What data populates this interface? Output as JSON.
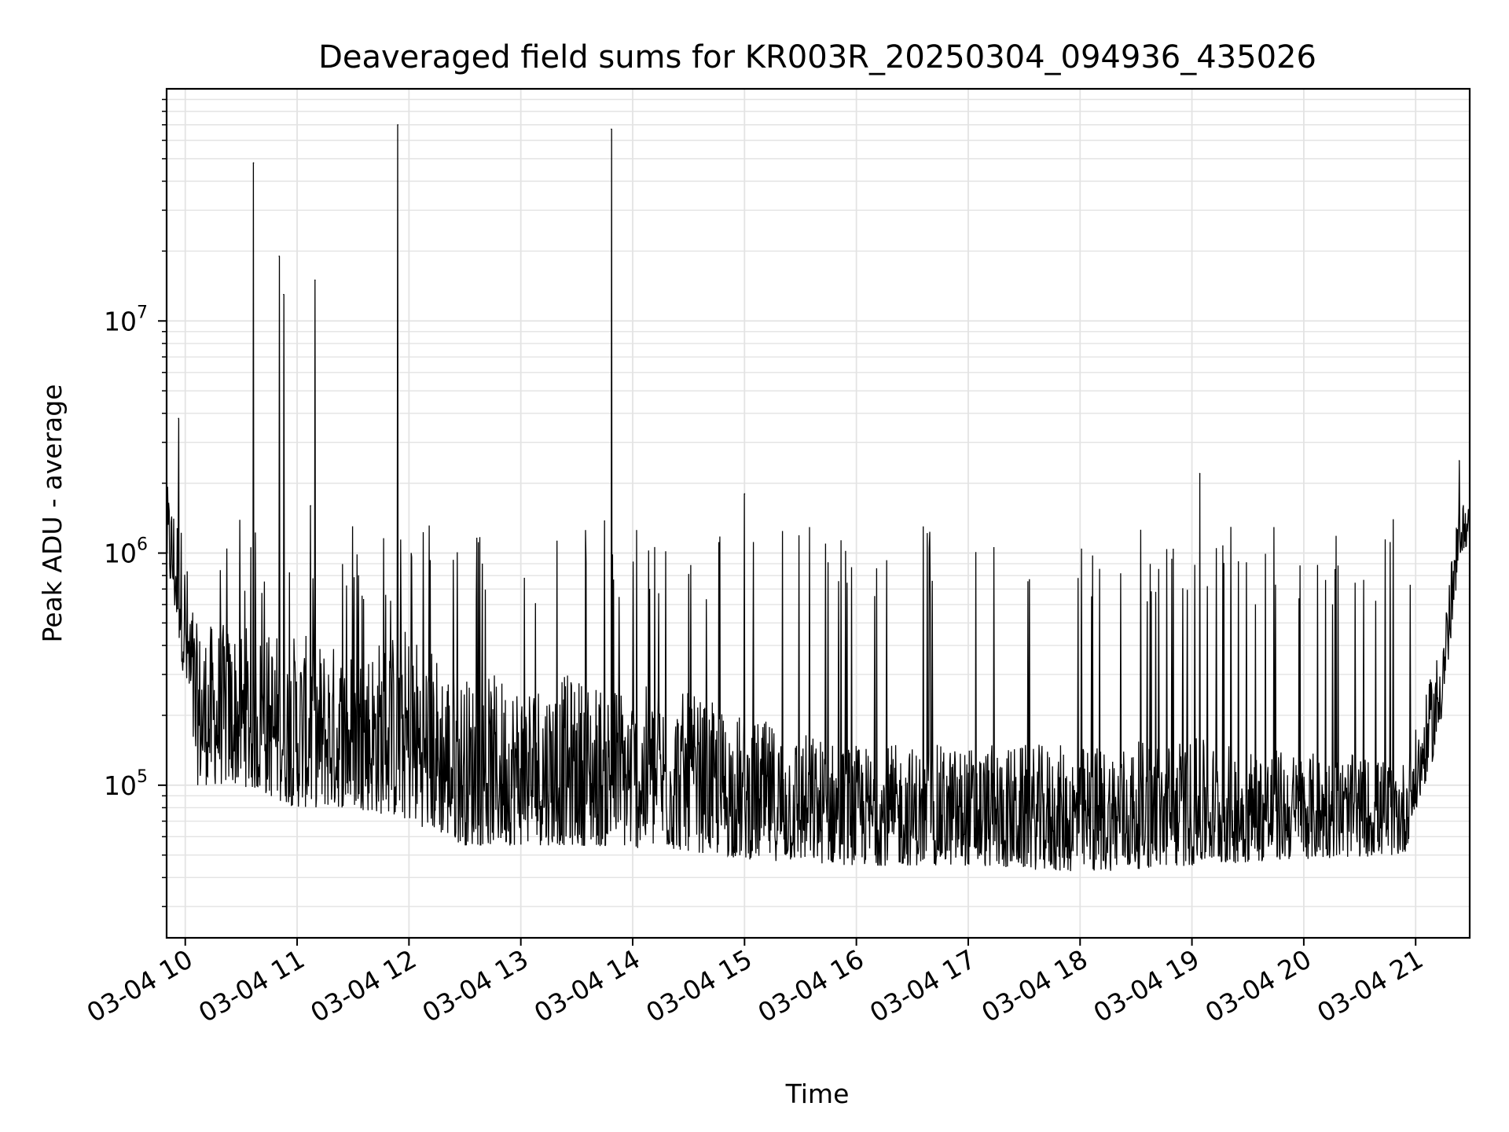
{
  "chart_data": {
    "type": "line",
    "title": "Deaveraged field sums for KR003R_20250304_094936_435026",
    "xlabel": "Time",
    "ylabel": "Peak ADU - average",
    "yscale": "log",
    "ylim": [
      22000,
      100000000
    ],
    "xlim_hours": [
      9.8333,
      21.4833
    ],
    "x_ticks": [
      {
        "hour": 10,
        "label": "03-04 10"
      },
      {
        "hour": 11,
        "label": "03-04 11"
      },
      {
        "hour": 12,
        "label": "03-04 12"
      },
      {
        "hour": 13,
        "label": "03-04 13"
      },
      {
        "hour": 14,
        "label": "03-04 14"
      },
      {
        "hour": 15,
        "label": "03-04 15"
      },
      {
        "hour": 16,
        "label": "03-04 16"
      },
      {
        "hour": 17,
        "label": "03-04 17"
      },
      {
        "hour": 18,
        "label": "03-04 18"
      },
      {
        "hour": 19,
        "label": "03-04 19"
      },
      {
        "hour": 20,
        "label": "03-04 20"
      },
      {
        "hour": 21,
        "label": "03-04 21"
      }
    ],
    "y_ticks": [
      {
        "value": 100000,
        "base": "10",
        "exp": "5"
      },
      {
        "value": 1000000,
        "base": "10",
        "exp": "6"
      },
      {
        "value": 10000000,
        "base": "10",
        "exp": "7"
      }
    ],
    "grid": true,
    "series": [
      {
        "name": "deaveraged field sum",
        "color": "#000000",
        "baseline_envelope": [
          {
            "hour": 9.83,
            "low": 900000,
            "high": 2000000
          },
          {
            "hour": 9.95,
            "low": 400000,
            "high": 1500000
          },
          {
            "hour": 10.1,
            "low": 100000,
            "high": 500000
          },
          {
            "hour": 10.5,
            "low": 100000,
            "high": 500000
          },
          {
            "hour": 11.0,
            "low": 80000,
            "high": 450000
          },
          {
            "hour": 11.5,
            "low": 80000,
            "high": 400000
          },
          {
            "hour": 12.0,
            "low": 70000,
            "high": 500000
          },
          {
            "hour": 12.5,
            "low": 55000,
            "high": 300000
          },
          {
            "hour": 13.5,
            "low": 55000,
            "high": 300000
          },
          {
            "hour": 14.5,
            "low": 52000,
            "high": 250000
          },
          {
            "hour": 15.0,
            "low": 48000,
            "high": 200000
          },
          {
            "hour": 16.0,
            "low": 45000,
            "high": 150000
          },
          {
            "hour": 17.0,
            "low": 45000,
            "high": 150000
          },
          {
            "hour": 18.0,
            "low": 42000,
            "high": 150000
          },
          {
            "hour": 19.0,
            "low": 45000,
            "high": 160000
          },
          {
            "hour": 20.0,
            "low": 48000,
            "high": 140000
          },
          {
            "hour": 20.9,
            "low": 50000,
            "high": 130000
          },
          {
            "hour": 21.05,
            "low": 90000,
            "high": 200000
          },
          {
            "hour": 21.2,
            "low": 150000,
            "high": 400000
          },
          {
            "hour": 21.3,
            "low": 350000,
            "high": 800000
          },
          {
            "hour": 21.4,
            "low": 1000000,
            "high": 1700000
          },
          {
            "hour": 21.48,
            "low": 1100000,
            "high": 1600000
          }
        ],
        "spikes": [
          {
            "hour": 9.94,
            "value": 3800000
          },
          {
            "hour": 10.61,
            "value": 48000000
          },
          {
            "hour": 10.84,
            "value": 19000000
          },
          {
            "hour": 10.88,
            "value": 13000000
          },
          {
            "hour": 11.12,
            "value": 1600000
          },
          {
            "hour": 11.16,
            "value": 15000000
          },
          {
            "hour": 11.9,
            "value": 70000000
          },
          {
            "hour": 13.81,
            "value": 67000000
          },
          {
            "hour": 15.0,
            "value": 1800000
          },
          {
            "hour": 19.07,
            "value": 2200000
          },
          {
            "hour": 21.39,
            "value": 2500000
          }
        ],
        "peak_band": {
          "low": 600000,
          "high": 1400000
        }
      }
    ]
  }
}
